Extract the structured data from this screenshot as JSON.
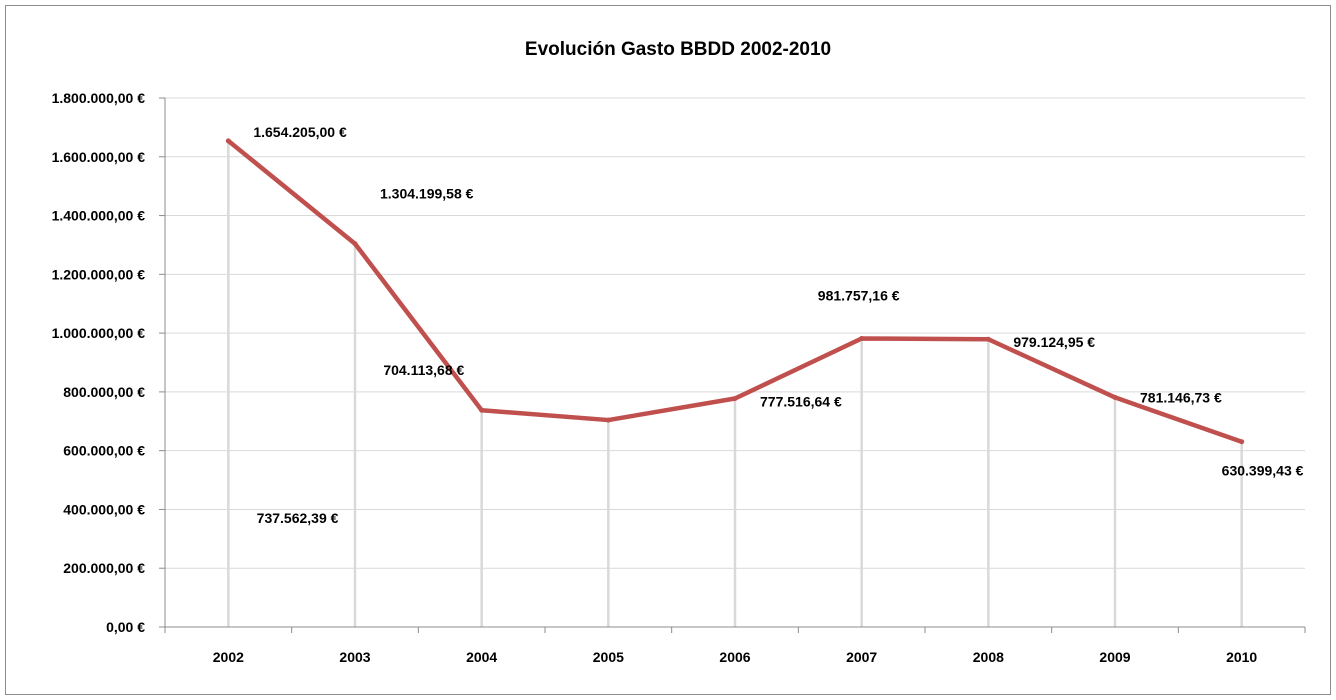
{
  "chart_data": {
    "type": "line",
    "title": "Evolución Gasto BBDD 2002-2010",
    "xlabel": "",
    "ylabel": "",
    "categories": [
      "2002",
      "2003",
      "2004",
      "2005",
      "2006",
      "2007",
      "2008",
      "2009",
      "2010"
    ],
    "series": [
      {
        "values": [
          1654205.0,
          1304199.58,
          737562.39,
          704113.68,
          777516.64,
          981757.16,
          979124.95,
          781146.73,
          630399.43
        ],
        "labels": [
          "1.654.205,00 €",
          "1.304.199,58 €",
          "737.562,39 €",
          "704.113,68 €",
          "777.516,64 €",
          "981.757,16 €",
          "979.124,95 €",
          "781.146,73 €",
          "630.399,43 €"
        ]
      }
    ],
    "ylim": [
      0,
      1800000
    ],
    "yticks": [
      0,
      200000,
      400000,
      600000,
      800000,
      1000000,
      1200000,
      1400000,
      1600000,
      1800000
    ],
    "ytick_labels": [
      "0,00 €",
      "200.000,00 €",
      "400.000,00 €",
      "600.000,00 €",
      "800.000,00 €",
      "1.000.000,00 €",
      "1.200.000,00 €",
      "1.400.000,00 €",
      "1.600.000,00 €",
      "1.800.000,00 €"
    ],
    "grid": true,
    "drop_lines": true,
    "legend": "none",
    "line_color": "#c0504d",
    "grid_color": "#d9d9d9",
    "drop_line_color": "#d9d9d9"
  }
}
